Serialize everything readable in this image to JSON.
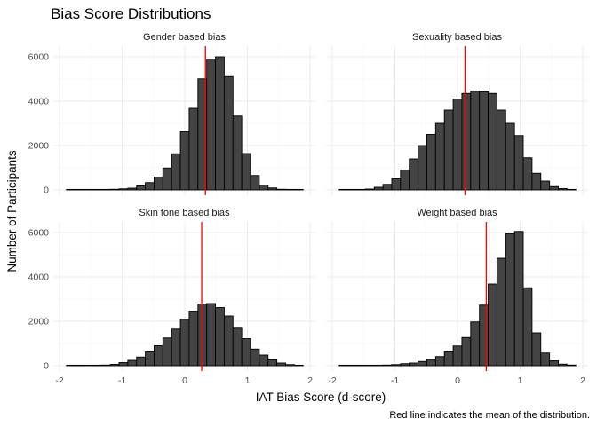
{
  "chart_data": {
    "type": "bar",
    "subtype": "faceted-histogram",
    "title": "Bias Score Distributions",
    "xlabel": "IAT Bias Score (d-score)",
    "ylabel": "Number of Participants",
    "caption": "Red line indicates the mean of the distribution.",
    "xlim": [
      -2,
      2
    ],
    "ylim": [
      0,
      6400
    ],
    "x_ticks": [
      "-2",
      "-1",
      "0",
      "1",
      "2"
    ],
    "y_ticks": [
      0,
      2000,
      4000,
      6000
    ],
    "y_tick_labels": [
      "0",
      "2000",
      "4000",
      "6000"
    ],
    "bin_width": 0.14,
    "bin_centers": [
      -1.82,
      -1.68,
      -1.54,
      -1.4,
      -1.26,
      -1.12,
      -0.98,
      -0.84,
      -0.7,
      -0.56,
      -0.42,
      -0.28,
      -0.14,
      0.0,
      0.14,
      0.28,
      0.42,
      0.56,
      0.7,
      0.84,
      0.98,
      1.12,
      1.26,
      1.4,
      1.54,
      1.68,
      1.82
    ],
    "grid": true,
    "mean_line_color": "#ff0000",
    "bar_color": "#444444",
    "facets": [
      {
        "label": "Gender based bias",
        "mean": 0.33,
        "counts": [
          0,
          0,
          0,
          10,
          20,
          30,
          50,
          80,
          180,
          330,
          580,
          990,
          1630,
          2620,
          3680,
          5010,
          5900,
          6000,
          5110,
          3330,
          1640,
          650,
          220,
          90,
          30,
          10,
          0
        ]
      },
      {
        "label": "Sexuality based bias",
        "mean": 0.12,
        "counts": [
          0,
          0,
          20,
          40,
          120,
          250,
          500,
          900,
          1400,
          2000,
          2500,
          3000,
          3600,
          4100,
          4350,
          4450,
          4420,
          4350,
          3600,
          3000,
          2450,
          1450,
          750,
          400,
          150,
          60,
          20
        ]
      },
      {
        "label": "Skin tone based bias",
        "mean": 0.27,
        "counts": [
          0,
          0,
          0,
          10,
          30,
          60,
          140,
          240,
          390,
          620,
          900,
          1250,
          1650,
          2090,
          2460,
          2780,
          2800,
          2620,
          2240,
          1690,
          1220,
          750,
          480,
          260,
          120,
          50,
          10
        ]
      },
      {
        "label": "Weight based bias",
        "mean": 0.46,
        "counts": [
          0,
          0,
          10,
          10,
          20,
          30,
          50,
          90,
          120,
          190,
          280,
          410,
          620,
          890,
          1270,
          1970,
          2730,
          3680,
          4840,
          5950,
          6050,
          3510,
          1480,
          570,
          220,
          70,
          30
        ]
      }
    ]
  }
}
